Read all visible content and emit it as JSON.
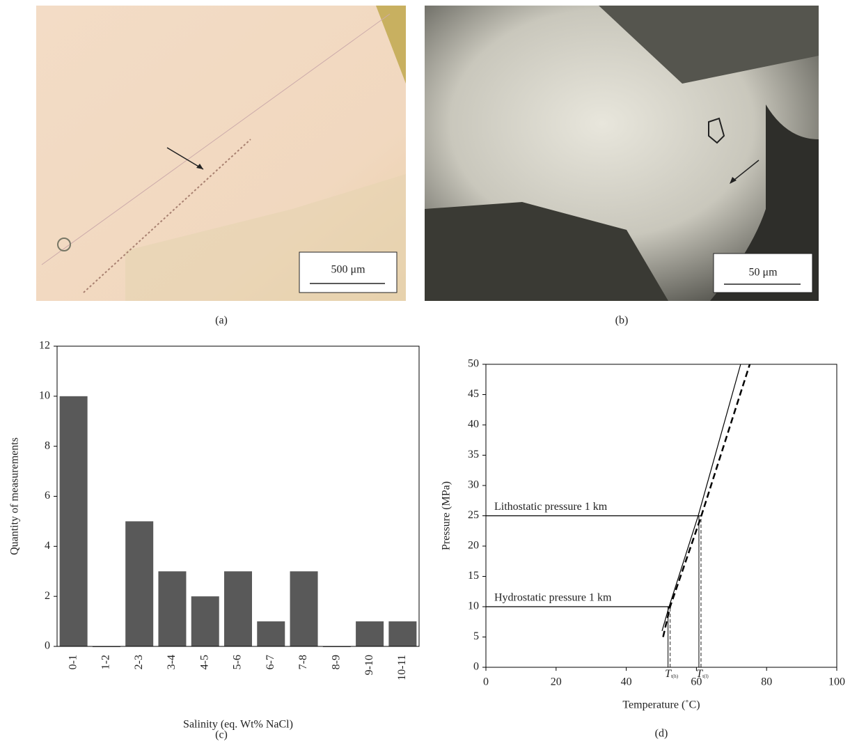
{
  "images": [
    {
      "panel_label": "(a)",
      "scale_bar": "500 μm"
    },
    {
      "panel_label": "(b)",
      "scale_bar": "50 μm"
    }
  ],
  "chart_data": [
    {
      "type": "bar",
      "panel_label": "(c)",
      "xlabel": "Salinity (eq. Wt% NaCl)",
      "ylabel": "Quantity of measurements",
      "categories": [
        "0-1",
        "1-2",
        "2-3",
        "3-4",
        "4-5",
        "5-6",
        "6-7",
        "7-8",
        "8-9",
        "9-10",
        "10-11"
      ],
      "values": [
        10,
        0,
        5,
        3,
        2,
        3,
        1,
        3,
        0,
        1,
        1
      ],
      "color": "#595959",
      "ylim": [
        0,
        12
      ],
      "yticks": [
        0,
        2,
        4,
        6,
        8,
        10,
        12
      ]
    },
    {
      "type": "line",
      "panel_label": "(d)",
      "xlabel": "Temperature (˚C)",
      "ylabel": "Pressure (MPa)",
      "xlim": [
        0,
        100
      ],
      "xticks": [
        0,
        20,
        40,
        60,
        80,
        100
      ],
      "ylim": [
        0,
        50
      ],
      "yticks": [
        0,
        5,
        10,
        15,
        20,
        25,
        30,
        35,
        40,
        45,
        50
      ],
      "series": [
        {
          "color": "#000000",
          "dashed": false,
          "x": [
            50.2,
            52.2,
            60.5,
            72.6
          ],
          "values": [
            6,
            10,
            25,
            50
          ]
        },
        {
          "color": "#000000",
          "dashed": true,
          "x": [
            50.5,
            52.5,
            61.4,
            75.2
          ],
          "values": [
            5,
            10,
            25,
            50
          ]
        }
      ],
      "reference_lines": [
        {
          "label": "Lithostatic pressure 1 km",
          "y": 25,
          "x_end": 61.3
        },
        {
          "label": "Hydrostatic pressure 1 km",
          "y": 10,
          "x_end": 52.5
        }
      ],
      "markers": [
        {
          "symbol": "T",
          "subscript": "t(h)",
          "x": 52.5,
          "y_end": 10
        },
        {
          "symbol": "T",
          "subscript": "t(l)",
          "x": 61.3,
          "y_end": 25
        }
      ]
    }
  ]
}
